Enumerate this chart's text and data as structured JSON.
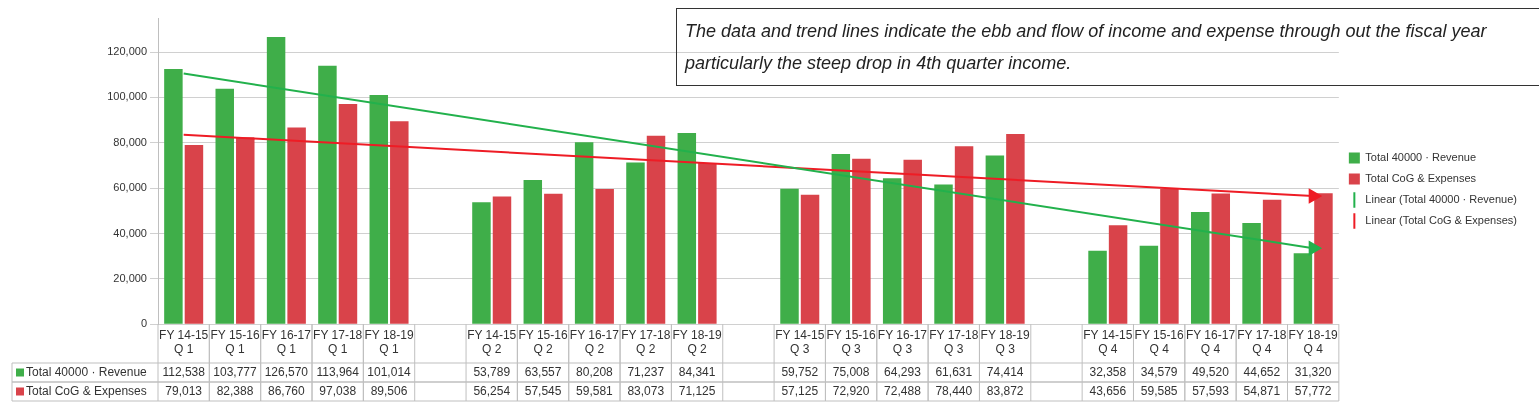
{
  "chart_data": {
    "type": "bar",
    "annotations": [
      "The data and trend lines indicate the ebb and flow of  income and expense through out the fiscal year particularly the steep drop in 4th quarter income."
    ],
    "categories": [
      "FY 14-15\nQ 1",
      "FY 15-16\nQ 1",
      "FY 16-17\nQ 1",
      "FY 17-18\nQ 1",
      "FY 18-19\nQ 1",
      null,
      "FY 14-15\nQ 2",
      "FY 15-16\nQ 2",
      "FY 16-17\nQ 2",
      "FY 17-18\nQ 2",
      "FY 18-19\nQ 2",
      null,
      "FY 14-15\nQ 3",
      "FY 15-16\nQ 3",
      "FY 16-17\nQ 3",
      "FY 17-18\nQ 3",
      "FY 18-19\nQ 3",
      null,
      "FY 14-15\nQ 4",
      "FY 15-16\nQ 4",
      "FY 16-17\nQ 4",
      "FY 17-18\nQ 4",
      "FY 18-19\nQ 4"
    ],
    "series": [
      {
        "name": "Total 40000 · Revenue",
        "color": "#3fae49",
        "values": [
          112538,
          103777,
          126570,
          113964,
          101014,
          null,
          53789,
          63557,
          80208,
          71237,
          84341,
          null,
          59752,
          75008,
          64293,
          61631,
          74414,
          null,
          32358,
          34579,
          49520,
          44652,
          31320
        ],
        "value_labels": [
          "112,538",
          "103,777",
          "126,570",
          "113,964",
          "101,014",
          null,
          "53,789",
          "63,557",
          "80,208",
          "71,237",
          "84,341",
          null,
          "59,752",
          "75,008",
          "64,293",
          "61,631",
          "74,414",
          null,
          "32,358",
          "34,579",
          "49,520",
          "44,652",
          "31,320"
        ]
      },
      {
        "name": "Total CoG & Expenses",
        "color": "#d9434a",
        "values": [
          79013,
          82388,
          86760,
          97038,
          89506,
          null,
          56254,
          57545,
          59581,
          83073,
          71125,
          null,
          57125,
          72920,
          72488,
          78440,
          83872,
          null,
          43656,
          59585,
          57593,
          54871,
          57772
        ],
        "value_labels": [
          "79,013",
          "82,388",
          "86,760",
          "97,038",
          "89,506",
          null,
          "56,254",
          "57,545",
          "59,581",
          "83,073",
          "71,125",
          null,
          "57,125",
          "72,920",
          "72,488",
          "78,440",
          "83,872",
          null,
          "43,656",
          "59,585",
          "57,593",
          "54,871",
          "57,772"
        ]
      },
      {
        "name": "Linear (Total 40000 · Revenue)",
        "type": "line",
        "color": "#22b14c",
        "x": [
          "FY 14-15\nQ 1",
          "FY 18-19\nQ 4"
        ],
        "values": [
          110500,
          33500
        ]
      },
      {
        "name": "Linear (Total CoG & Expenses)",
        "type": "line",
        "color": "#ee1c25",
        "x": [
          "FY 14-15\nQ 1",
          "FY 18-19\nQ 4"
        ],
        "values": [
          83500,
          56500
        ]
      }
    ],
    "ylim": [
      0,
      135000
    ],
    "yticks": [
      0,
      {
        "value": 20000,
        "label": "20,000"
      },
      {
        "value": 40000,
        "label": "40,000"
      },
      {
        "value": 60000,
        "label": "60,000"
      },
      {
        "value": 80000,
        "label": "80,000"
      },
      {
        "value": 100000,
        "label": "100,000"
      },
      {
        "value": 120000,
        "label": "120,000"
      }
    ],
    "grid": "y",
    "legend": "right"
  }
}
